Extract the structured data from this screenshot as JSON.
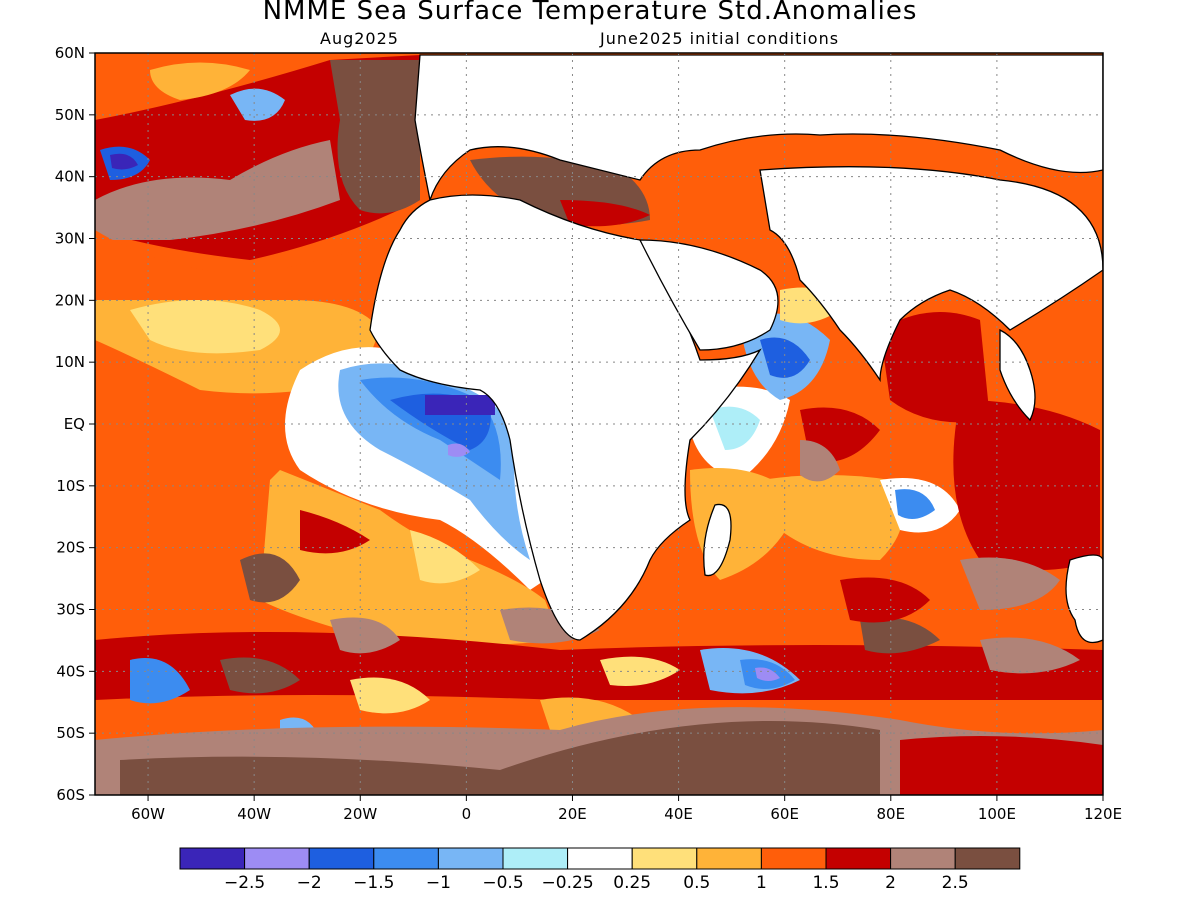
{
  "title": "NMME Sea Surface Temperature Std.Anomalies",
  "subtitle_left": "Aug2025",
  "subtitle_right": "June2025 initial conditions",
  "map": {
    "lon_range": [
      -70,
      120
    ],
    "lat_range": [
      -60,
      60
    ],
    "lon_ticks": [
      {
        "value": -60,
        "label": "60W"
      },
      {
        "value": -40,
        "label": "40W"
      },
      {
        "value": -20,
        "label": "20W"
      },
      {
        "value": 0,
        "label": "0"
      },
      {
        "value": 20,
        "label": "20E"
      },
      {
        "value": 40,
        "label": "40E"
      },
      {
        "value": 60,
        "label": "60E"
      },
      {
        "value": 80,
        "label": "80E"
      },
      {
        "value": 100,
        "label": "100E"
      },
      {
        "value": 120,
        "label": "120E"
      }
    ],
    "lat_ticks": [
      {
        "value": 60,
        "label": "60N"
      },
      {
        "value": 50,
        "label": "50N"
      },
      {
        "value": 40,
        "label": "40N"
      },
      {
        "value": 30,
        "label": "30N"
      },
      {
        "value": 20,
        "label": "20N"
      },
      {
        "value": 10,
        "label": "10N"
      },
      {
        "value": 0,
        "label": "EQ"
      },
      {
        "value": -10,
        "label": "10S"
      },
      {
        "value": -20,
        "label": "20S"
      },
      {
        "value": -30,
        "label": "30S"
      },
      {
        "value": -40,
        "label": "40S"
      },
      {
        "value": -50,
        "label": "50S"
      },
      {
        "value": -60,
        "label": "60S"
      }
    ],
    "grid": true
  },
  "colorbar": {
    "colors": [
      "#3a25b8",
      "#9d8cf4",
      "#1e5fe0",
      "#3c8cf0",
      "#78b6f5",
      "#aeeef8",
      "#ffffff",
      "#ffe07a",
      "#ffb338",
      "#ff5e0a",
      "#c40000",
      "#b08378",
      "#7a4f40"
    ],
    "labels": [
      "−2.5",
      "−2",
      "−1.5",
      "−1",
      "−0.5",
      "−0.25",
      "0.25",
      "0.5",
      "1",
      "1.5",
      "2",
      "2.5"
    ]
  }
}
